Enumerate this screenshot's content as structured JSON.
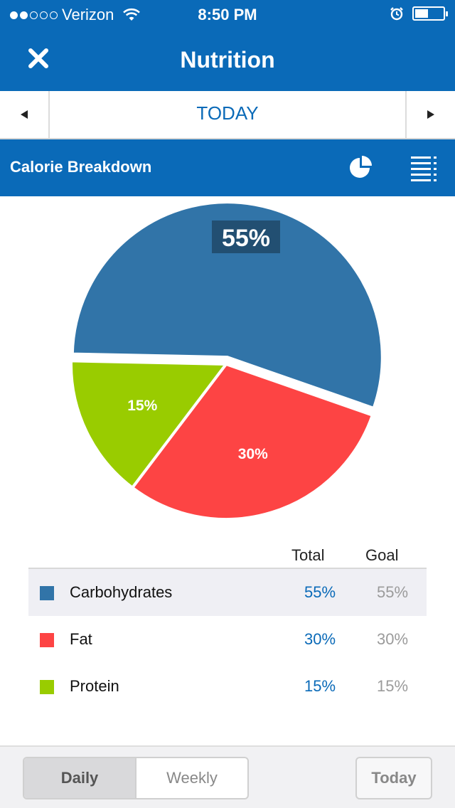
{
  "status_bar": {
    "carrier": "Verizon",
    "time": "8:50 PM",
    "signal_dots_filled": 2,
    "signal_dots_total": 5
  },
  "nav": {
    "title": "Nutrition",
    "close_icon": "close-icon"
  },
  "date_nav": {
    "label": "TODAY",
    "prev_icon": "triangle-left-icon",
    "next_icon": "triangle-right-icon"
  },
  "section": {
    "title": "Calorie Breakdown",
    "pie_icon": "pie-chart-icon",
    "list_icon": "list-icon"
  },
  "chart_data": {
    "type": "pie",
    "slices": [
      {
        "name": "Carbohydrates",
        "value": 55,
        "label": "55%",
        "color": "#3174a8"
      },
      {
        "name": "Fat",
        "value": 30,
        "label": "30%",
        "color": "#fd4444"
      },
      {
        "name": "Protein",
        "value": 15,
        "label": "15%",
        "color": "#99cc00"
      }
    ],
    "highlighted": "Carbohydrates"
  },
  "table": {
    "headers": {
      "total": "Total",
      "goal": "Goal"
    },
    "rows": [
      {
        "name": "Carbohydrates",
        "total": "55%",
        "goal": "55%",
        "color": "#3174a8"
      },
      {
        "name": "Fat",
        "total": "30%",
        "goal": "30%",
        "color": "#fd4444"
      },
      {
        "name": "Protein",
        "total": "15%",
        "goal": "15%",
        "color": "#99cc00"
      }
    ]
  },
  "bottom_bar": {
    "segments": [
      "Daily",
      "Weekly"
    ],
    "selected": "Daily",
    "today_button": "Today"
  },
  "colors": {
    "brand": "#0a6ab8"
  }
}
